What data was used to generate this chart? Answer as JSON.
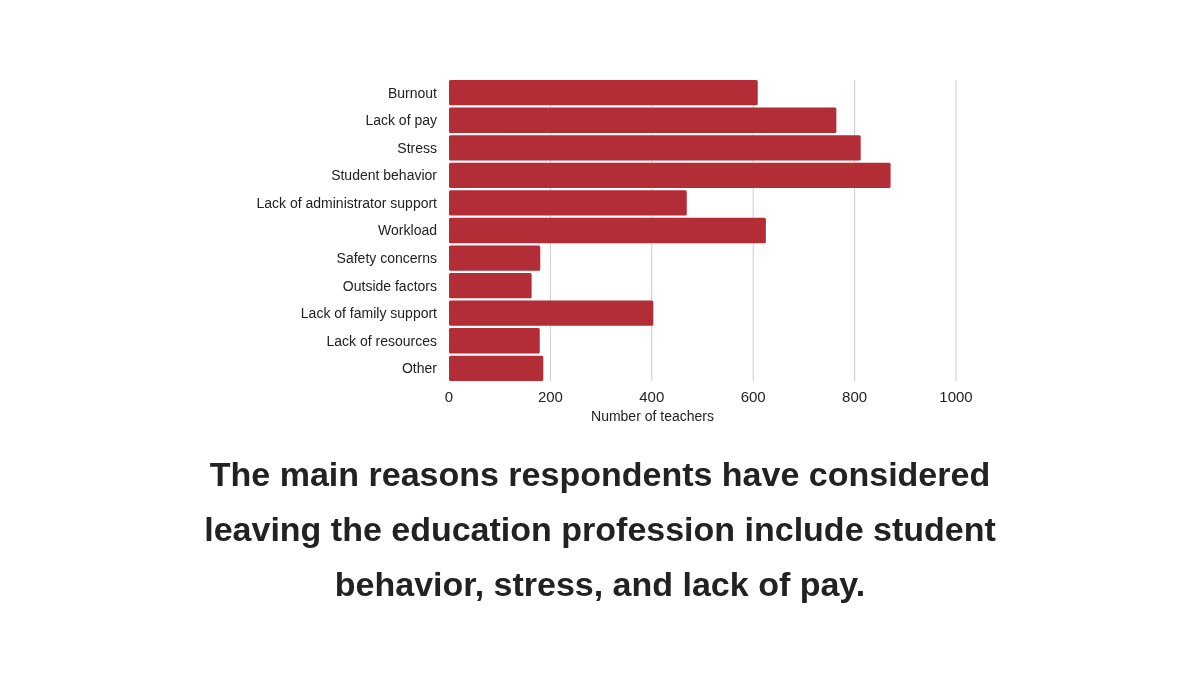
{
  "chart_data": {
    "type": "bar",
    "orientation": "horizontal",
    "title": "The main reasons respondents have considered leaving the education profession include student behavior, stress, and lack of pay.",
    "categories": [
      "Burnout",
      "Lack of pay",
      "Stress",
      "Student behavior",
      "Lack of administrator support",
      "Workload",
      "Safety concerns",
      "Outside factors",
      "Lack of family support",
      "Lack of resources",
      "Other"
    ],
    "values": [
      609,
      764,
      812,
      871,
      469,
      625,
      180,
      163,
      403,
      179,
      186
    ],
    "color": "#b22d35",
    "xlabel": "Number of teachers",
    "xlim": [
      0,
      1000
    ],
    "xticks": [
      0,
      200,
      400,
      600,
      800,
      1000
    ],
    "grid": "x"
  }
}
